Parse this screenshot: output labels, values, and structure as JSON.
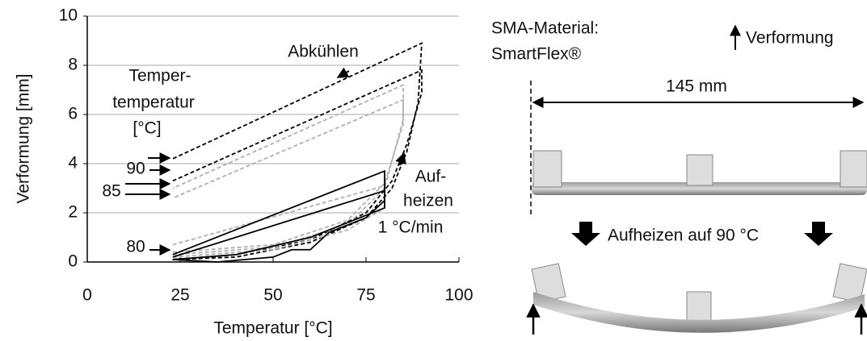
{
  "chart_data": {
    "type": "line",
    "xlabel": "Temperatur [°C]",
    "ylabel": "Verformung [mm]",
    "xlim": [
      0,
      100
    ],
    "xticks": [
      0,
      25,
      50,
      75,
      100
    ],
    "ylim": [
      0,
      10
    ],
    "yticks": [
      0,
      2,
      4,
      6,
      8,
      10
    ],
    "grid": true,
    "series": [
      {
        "color": "#000000",
        "dash": true,
        "x": [
          23,
          40,
          60,
          75,
          82,
          86,
          89,
          90,
          23
        ],
        "values": [
          0.1,
          0.2,
          0.8,
          1.8,
          3,
          4.5,
          6.5,
          8.9,
          4.2
        ]
      },
      {
        "color": "#000000",
        "dash": true,
        "x": [
          23,
          40,
          60,
          75,
          82,
          86,
          90,
          90,
          23
        ],
        "values": [
          0.1,
          0.3,
          0.9,
          2,
          3.3,
          4.8,
          6.9,
          7.8,
          3.3
        ]
      },
      {
        "color": "#b0b0b0",
        "dash": true,
        "x": [
          23,
          50,
          70,
          80,
          85,
          85,
          23
        ],
        "values": [
          0.3,
          0.6,
          1.5,
          3,
          5.8,
          7.2,
          3.0
        ]
      },
      {
        "color": "#b0b0b0",
        "dash": true,
        "x": [
          23,
          50,
          70,
          80,
          85,
          85,
          23
        ],
        "values": [
          0.4,
          0.7,
          1.7,
          3.2,
          5.6,
          6.6,
          2.6
        ]
      },
      {
        "color": "#b0b0b0",
        "dash": true,
        "x": [
          23,
          50,
          70,
          80,
          80,
          23
        ],
        "values": [
          0.2,
          0.5,
          1.3,
          2.2,
          3.1,
          0.7
        ]
      },
      {
        "color": "#000000",
        "dash": false,
        "x": [
          23,
          35,
          50,
          55,
          60,
          65,
          75,
          80,
          80,
          23
        ],
        "values": [
          0.1,
          0,
          0.2,
          0.5,
          0.5,
          1.2,
          1.8,
          2.5,
          3.7,
          0.3
        ]
      },
      {
        "color": "#000000",
        "dash": false,
        "x": [
          23,
          40,
          60,
          70,
          80,
          80,
          23
        ],
        "values": [
          0.1,
          0.3,
          1,
          1.6,
          2.2,
          2.9,
          0.2
        ]
      }
    ],
    "annotations": [
      "Abkühlen",
      "Temper-",
      "temperatur",
      "[°C]",
      "90",
      "85",
      "80",
      "Auf-",
      "heizen",
      "1 °C/min"
    ]
  },
  "photo": {
    "material_label": "SMA-Material:",
    "material": "SmartFlex®",
    "direction": "Verformung",
    "length": "145 mm",
    "process": "Aufheizen auf 90 °C"
  }
}
